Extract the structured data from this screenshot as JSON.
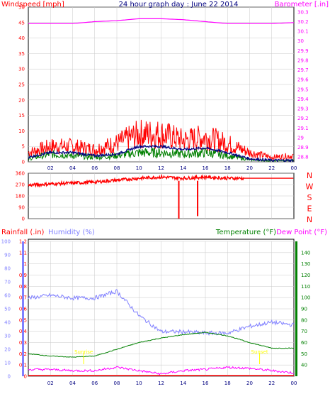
{
  "title": "24 hour graph day : June 22 2014",
  "colors": {
    "wind": "#ff0000",
    "gust": "#ff0000",
    "avg_wind": "#000080",
    "wind_green": "#008000",
    "barometer": "#ff00ff",
    "direction": "#ff0000",
    "rain": "#ff0000",
    "humidity": "#8080ff",
    "temperature": "#008000",
    "dewpoint": "#ff00ff",
    "sun_marker": "#ffff00",
    "grid": "#c8c8c8"
  },
  "chart_data": [
    {
      "type": "line",
      "panel": "wind-barometer",
      "left_label": "Windspeed [mph]",
      "right_label": "Barometer [.in]",
      "x_ticks": [
        "02",
        "04",
        "06",
        "08",
        "10",
        "12",
        "14",
        "16",
        "18",
        "20",
        "22",
        "00"
      ],
      "left_ticks": [
        "0",
        "5",
        "10",
        "15",
        "20",
        "25",
        "30",
        "35",
        "40",
        "45",
        "50"
      ],
      "right_ticks": [
        "28.8",
        "28.9",
        "29",
        "29.1",
        "29.2",
        "29.3",
        "29.4",
        "29.5",
        "29.6",
        "29.7",
        "29.8",
        "29.9",
        "30",
        "30.1",
        "30.2",
        "30.3"
      ],
      "left_range": [
        0,
        50
      ],
      "right_range": [
        28.75,
        30.35
      ],
      "hours": [
        0,
        2,
        4,
        6,
        8,
        10,
        12,
        14,
        16,
        18,
        20,
        22,
        24
      ],
      "series": [
        {
          "key": "gust",
          "axis": "left",
          "values": [
            3,
            5,
            5,
            4,
            6,
            9,
            9,
            7,
            8,
            6,
            3,
            1.5,
            2
          ]
        },
        {
          "key": "avg_wind",
          "axis": "left",
          "values": [
            1.5,
            3,
            3,
            2,
            2.5,
            5,
            5,
            4,
            4.5,
            3,
            1,
            0.5,
            0.5
          ]
        },
        {
          "key": "wind_green",
          "axis": "left",
          "values": [
            1,
            2.5,
            2,
            1.5,
            2,
            3,
            3,
            2.5,
            3,
            2,
            0.7,
            0.3,
            0.5
          ]
        },
        {
          "key": "barometer",
          "axis": "right",
          "values": [
            30.18,
            30.18,
            30.18,
            30.2,
            30.21,
            30.23,
            30.23,
            30.22,
            30.2,
            30.18,
            30.18,
            30.18,
            30.19
          ]
        }
      ]
    },
    {
      "type": "line",
      "panel": "wind-direction",
      "left_ticks": [
        "0",
        "90",
        "180",
        "270",
        "360"
      ],
      "direction_labels": [
        "N",
        "W",
        "S",
        "E",
        "N"
      ],
      "left_range": [
        0,
        360
      ],
      "hours": [
        0,
        2,
        4,
        6,
        8,
        10,
        12,
        14,
        16,
        18,
        20,
        22,
        24
      ],
      "values": [
        265,
        275,
        282,
        290,
        305,
        320,
        330,
        320,
        330,
        320,
        320,
        320,
        320
      ],
      "dips": [
        {
          "hour": 13.6,
          "value": 0
        },
        {
          "hour": 15.3,
          "value": 20
        }
      ]
    },
    {
      "type": "line",
      "panel": "rain-humidity-temp",
      "left_label": "Rainfall (.in)",
      "humidity_label": "Humidity (%)",
      "temp_label": "Temperature (°F)",
      "dew_label": "Dew Point (°F)",
      "rain_ticks": [
        "0",
        "0.1",
        "0.2",
        "0.3",
        "0.4",
        "0.5",
        "0.6",
        "0.7",
        "0.8",
        "0.9",
        "1",
        "1.1",
        "1.2"
      ],
      "humidity_ticks": [
        "0",
        "10",
        "20",
        "30",
        "40",
        "50",
        "60",
        "70",
        "80",
        "90",
        "100"
      ],
      "temp_ticks": [
        "40",
        "50",
        "60",
        "70",
        "80",
        "90",
        "100",
        "110",
        "120",
        "130",
        "140"
      ],
      "temp_range": [
        30,
        150
      ],
      "humidity_range": [
        0,
        100
      ],
      "rain_range": [
        0,
        1.2
      ],
      "hours": [
        0,
        2,
        4,
        6,
        8,
        10,
        12,
        14,
        16,
        18,
        20,
        22,
        24
      ],
      "series": [
        {
          "key": "humidity",
          "values": [
            58,
            60,
            58,
            58,
            63,
            45,
            33,
            33,
            32,
            32,
            37,
            40,
            38
          ]
        },
        {
          "key": "temperature",
          "values": [
            50,
            48,
            47,
            48,
            54,
            60,
            64,
            67,
            69,
            66,
            60,
            55,
            55
          ]
        },
        {
          "key": "dewpoint",
          "values": [
            36,
            36,
            35,
            35,
            38,
            35,
            32,
            35,
            36,
            38,
            37,
            35,
            33
          ]
        }
      ],
      "sun_markers": [
        {
          "hour": 5.0,
          "label": "Sunrise"
        },
        {
          "hour": 20.9,
          "label": "Sunset"
        }
      ]
    }
  ]
}
